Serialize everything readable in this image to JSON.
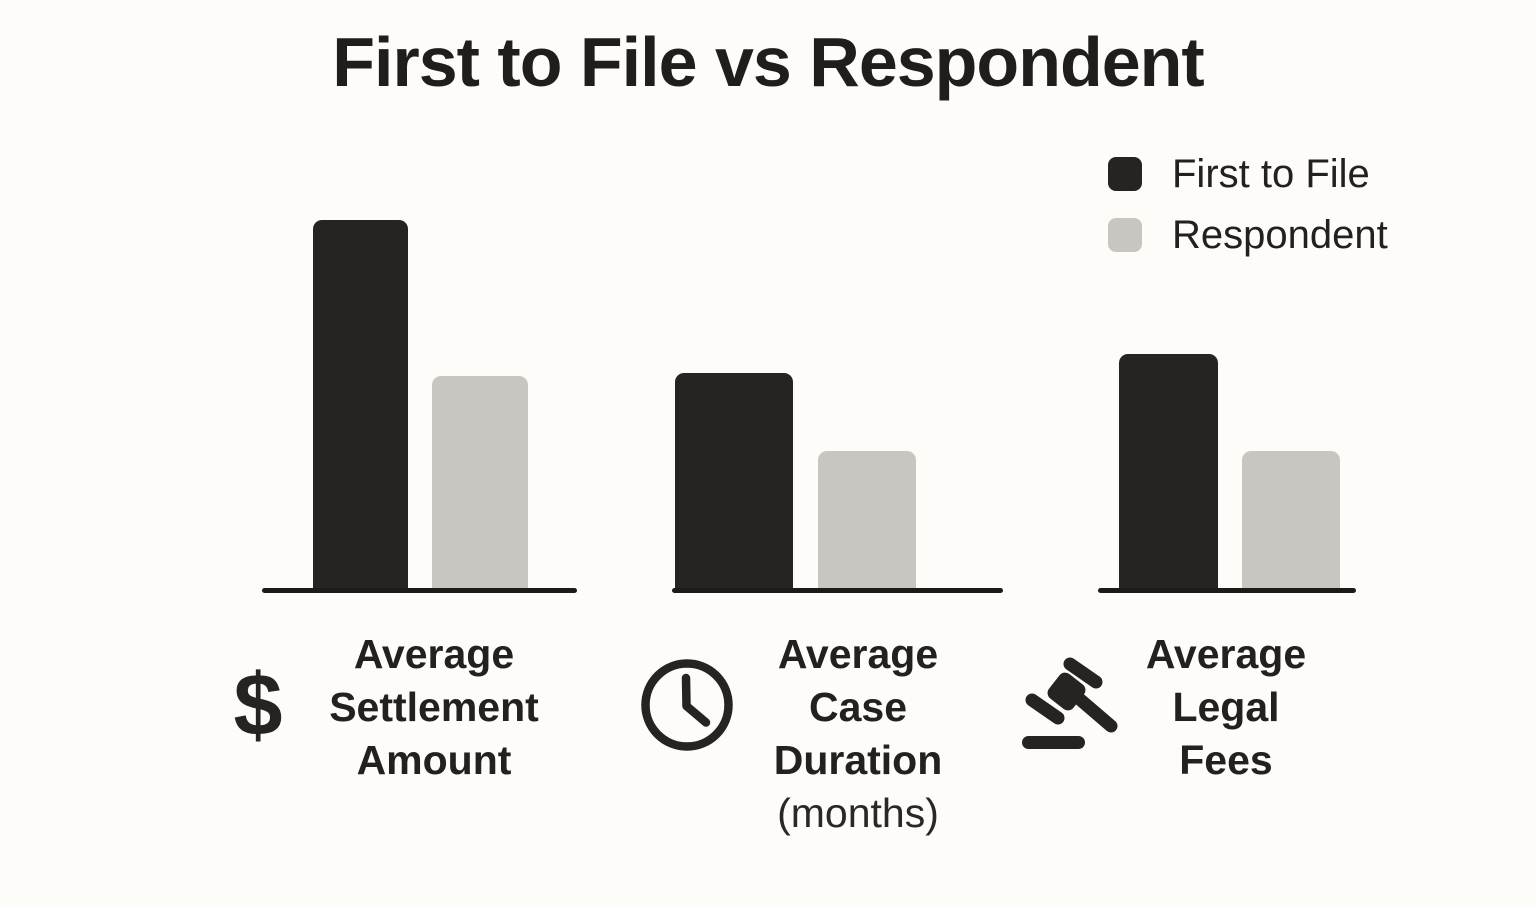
{
  "title": "First to File vs Respondent",
  "colors": {
    "background": "#fdfcf8",
    "first_to_file": "#262422",
    "respondent": "#c9c6c2",
    "text": "#232120",
    "axis": "#1d1a17"
  },
  "legend": {
    "items": [
      {
        "label": "First to File",
        "color": "#262422"
      },
      {
        "label": "Respondent",
        "color": "#c9c6c2"
      }
    ]
  },
  "groups": [
    {
      "icon": "dollar-icon",
      "lines": [
        "Average",
        "Settlement",
        "Amount"
      ],
      "sublabel": ""
    },
    {
      "icon": "clock-icon",
      "lines": [
        "Average",
        "Case",
        "Duration"
      ],
      "sublabel": "(months)"
    },
    {
      "icon": "gavel-icon",
      "lines": [
        "Average",
        "Legal",
        "Fees"
      ],
      "sublabel": ""
    }
  ],
  "icons": {
    "dollar_glyph": "$"
  },
  "chart_data": {
    "type": "bar",
    "title": "First to File vs Respondent",
    "categories": [
      "Average Settlement Amount",
      "Average Case Duration (months)",
      "Average Legal Fees"
    ],
    "series": [
      {
        "name": "First to File",
        "color": "#262422",
        "values_relative": [
          100,
          59,
          64
        ]
      },
      {
        "name": "Respondent",
        "color": "#c9c6c2",
        "values_relative": [
          58,
          38,
          38
        ]
      }
    ],
    "value_axis_shown": false,
    "value_labels_shown": false,
    "grid": false,
    "legend_position": "top-right",
    "note": "No numeric scale is printed; values are bar heights relative to the tallest bar (=100)."
  }
}
